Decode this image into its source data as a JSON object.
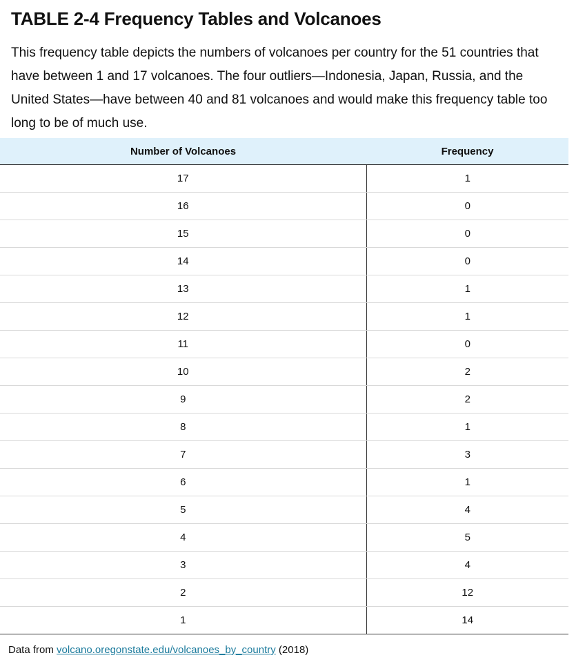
{
  "title": "TABLE 2-4 Frequency Tables and Volcanoes",
  "caption": "This frequency table depicts the numbers of volcanoes per country for the 51 countries that have between 1 and 17 volcanoes. The four outliers—Indonesia, Japan, Russia, and the United States—have between 40 and 81 volcanoes and would make this frequency table too long to be of much use.",
  "table": {
    "headers": [
      "Number of Volcanoes",
      "Frequency"
    ],
    "rows": [
      [
        "17",
        "1"
      ],
      [
        "16",
        "0"
      ],
      [
        "15",
        "0"
      ],
      [
        "14",
        "0"
      ],
      [
        "13",
        "1"
      ],
      [
        "12",
        "1"
      ],
      [
        "11",
        "0"
      ],
      [
        "10",
        "2"
      ],
      [
        "9",
        "2"
      ],
      [
        "8",
        "1"
      ],
      [
        "7",
        "3"
      ],
      [
        "6",
        "1"
      ],
      [
        "5",
        "4"
      ],
      [
        "4",
        "5"
      ],
      [
        "3",
        "4"
      ],
      [
        "2",
        "12"
      ],
      [
        "1",
        "14"
      ]
    ]
  },
  "source": {
    "prefix": "Data from ",
    "link_text": "volcano.oregonstate.edu/volcanoes_by_country",
    "suffix": " (2018)"
  },
  "colors": {
    "header_bg": "#dff1fb",
    "link": "#1a7a9c"
  }
}
